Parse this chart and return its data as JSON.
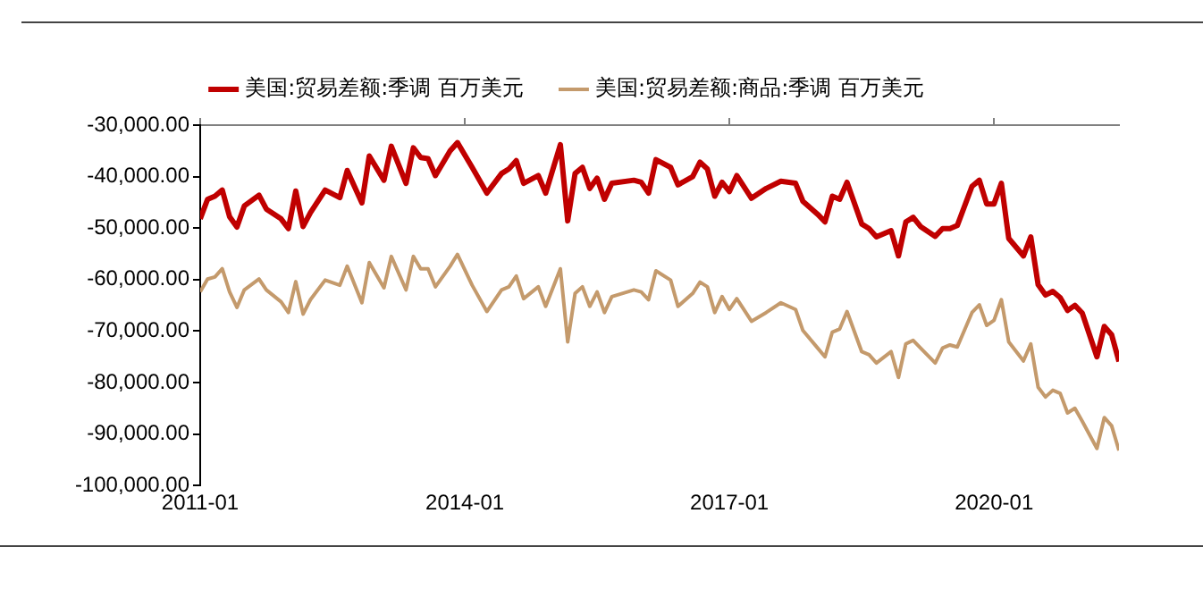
{
  "chart_data": {
    "type": "line",
    "x": [
      "2011-01",
      "2011-02",
      "2011-03",
      "2011-04",
      "2011-05",
      "2011-06",
      "2011-07",
      "2011-09",
      "2011-10",
      "2011-12",
      "2012-01",
      "2012-02",
      "2012-03",
      "2012-04",
      "2012-06",
      "2012-08",
      "2012-09",
      "2012-11",
      "2012-12",
      "2013-02",
      "2013-03",
      "2013-05",
      "2013-06",
      "2013-07",
      "2013-08",
      "2013-09",
      "2013-11",
      "2013-12",
      "2014-02",
      "2014-04",
      "2014-06",
      "2014-07",
      "2014-08",
      "2014-09",
      "2014-11",
      "2014-12",
      "2015-02",
      "2015-03",
      "2015-04",
      "2015-05",
      "2015-06",
      "2015-07",
      "2015-08",
      "2015-09",
      "2015-12",
      "2016-01",
      "2016-02",
      "2016-03",
      "2016-05",
      "2016-06",
      "2016-08",
      "2016-09",
      "2016-10",
      "2016-11",
      "2016-12",
      "2017-01",
      "2017-02",
      "2017-04",
      "2017-06",
      "2017-08",
      "2017-10",
      "2017-11",
      "2018-01",
      "2018-02",
      "2018-03",
      "2018-04",
      "2018-05",
      "2018-07",
      "2018-08",
      "2018-09",
      "2018-11",
      "2018-12",
      "2019-01",
      "2019-02",
      "2019-03",
      "2019-05",
      "2019-06",
      "2019-07",
      "2019-08",
      "2019-10",
      "2019-11",
      "2019-12",
      "2020-01",
      "2020-02",
      "2020-03",
      "2020-05",
      "2020-06",
      "2020-07",
      "2020-08",
      "2020-09",
      "2020-10",
      "2020-11",
      "2020-12",
      "2021-01",
      "2021-03",
      "2021-04",
      "2021-05",
      "2021-06"
    ],
    "series": [
      {
        "name": "美国:贸易差额:季调 百万美元",
        "color": "#c00000",
        "values": [
          -48200,
          -44400,
          -43800,
          -42600,
          -47800,
          -49800,
          -45700,
          -43600,
          -46300,
          -48200,
          -50100,
          -42800,
          -49700,
          -47000,
          -42600,
          -44100,
          -38800,
          -45100,
          -36000,
          -40700,
          -34100,
          -41300,
          -34400,
          -36300,
          -36500,
          -39800,
          -35000,
          -33400,
          -38200,
          -43200,
          -39400,
          -38500,
          -36900,
          -41300,
          -39800,
          -43200,
          -33800,
          -48600,
          -39400,
          -38200,
          -42300,
          -40300,
          -44400,
          -41300,
          -40700,
          -41100,
          -43200,
          -36700,
          -38200,
          -41600,
          -40000,
          -37200,
          -38500,
          -43800,
          -41100,
          -42900,
          -39800,
          -44200,
          -42300,
          -40900,
          -41300,
          -44800,
          -47300,
          -48800,
          -43800,
          -44400,
          -41100,
          -49200,
          -50100,
          -51700,
          -50500,
          -55400,
          -48800,
          -47900,
          -49700,
          -51600,
          -50100,
          -50100,
          -49500,
          -41900,
          -40700,
          -45300,
          -45300,
          -41300,
          -52000,
          -55400,
          -51700,
          -61000,
          -63000,
          -62300,
          -63500,
          -66000,
          -65000,
          -66500,
          -75000,
          -69100,
          -70700,
          -75900
        ]
      },
      {
        "name": "美国:贸易差额:商品:季调 百万美元",
        "color": "#c49a6c",
        "values": [
          -62400,
          -59900,
          -59500,
          -57900,
          -62400,
          -65400,
          -62000,
          -59900,
          -62000,
          -64300,
          -66400,
          -60400,
          -66700,
          -63900,
          -60100,
          -61100,
          -57400,
          -64500,
          -56700,
          -61600,
          -55500,
          -62000,
          -55500,
          -57900,
          -57900,
          -61400,
          -57400,
          -55100,
          -61100,
          -66200,
          -62000,
          -61400,
          -59300,
          -63700,
          -61400,
          -65200,
          -57900,
          -72100,
          -62700,
          -61400,
          -65200,
          -62400,
          -66400,
          -63300,
          -62000,
          -62400,
          -63900,
          -58300,
          -60100,
          -65200,
          -62700,
          -60500,
          -61400,
          -66400,
          -63300,
          -65800,
          -63700,
          -68100,
          -66400,
          -64500,
          -65800,
          -69900,
          -73300,
          -75000,
          -70200,
          -69600,
          -66200,
          -74000,
          -74600,
          -76200,
          -74000,
          -79000,
          -72500,
          -71800,
          -73300,
          -76200,
          -73300,
          -72700,
          -73100,
          -66400,
          -64900,
          -68900,
          -67900,
          -63900,
          -72100,
          -75800,
          -72500,
          -80900,
          -82800,
          -81500,
          -82100,
          -85900,
          -85000,
          -87500,
          -92800,
          -86800,
          -88400,
          -93200
        ]
      }
    ],
    "xlim": [
      "2011-01",
      "2021-06"
    ],
    "xticks": [
      "2011-01",
      "2014-01",
      "2017-01",
      "2020-01"
    ],
    "ylim": [
      -100000,
      -30000
    ],
    "yticks": [
      {
        "value": -100000,
        "label": "-100,000.00"
      },
      {
        "value": -90000,
        "label": "-90,000.00"
      },
      {
        "value": -80000,
        "label": "-80,000.00"
      },
      {
        "value": -70000,
        "label": "-70,000.00"
      },
      {
        "value": -60000,
        "label": "-60,000.00"
      },
      {
        "value": -50000,
        "label": "-50,000.00"
      },
      {
        "value": -40000,
        "label": "-40,000.00"
      },
      {
        "value": -30000,
        "label": "-30,000.00"
      }
    ],
    "legend": "top",
    "grid": false,
    "marker": "none",
    "line_style": "solid"
  }
}
